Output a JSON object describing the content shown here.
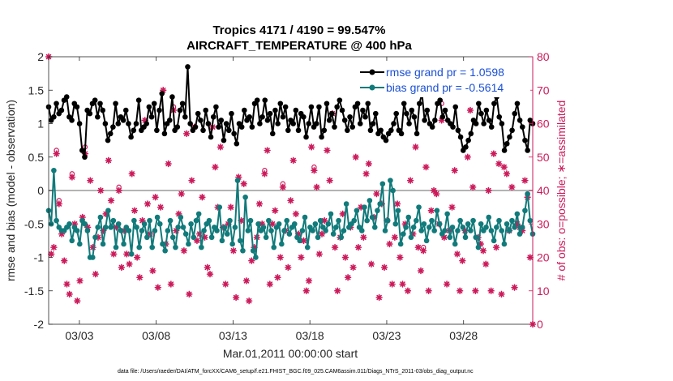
{
  "chart_data": {
    "type": "line",
    "title": "Tropics 4171 / 4190 = 99.547%",
    "subtitle": "AIRCRAFT_TEMPERATURE @ 400 hPa",
    "xlabel": "Mar.01,2011 00:00:00 start",
    "ylabel_left": "rmse and bias (model - observation)",
    "ylabel_right": "# of obs: o=possible; ∗=assimilated",
    "xlim": [
      1,
      32.5
    ],
    "ylim_left": [
      -2,
      2
    ],
    "ylim_right": [
      0,
      80
    ],
    "x_ticks": [
      3,
      8,
      13,
      18,
      23,
      28
    ],
    "x_tick_labels": [
      "03/03",
      "03/08",
      "03/13",
      "03/18",
      "03/23",
      "03/28"
    ],
    "y_left_ticks": [
      -2,
      -1.5,
      -1,
      -0.5,
      0,
      0.5,
      1,
      1.5,
      2
    ],
    "y_left_tick_labels": [
      "-2",
      "-1.5",
      "-1",
      "-0.5",
      "0",
      "0.5",
      "1",
      "1.5",
      "2"
    ],
    "y_right_ticks": [
      0,
      10,
      20,
      30,
      40,
      50,
      60,
      70,
      80
    ],
    "y_right_tick_labels": [
      "0",
      "10",
      "20",
      "30",
      "40",
      "50",
      "60",
      "70",
      "80"
    ],
    "zero_line": 0,
    "legend": {
      "position": "top-right"
    },
    "series": [
      {
        "name": "rmse grand pr = 1.0598",
        "color": "#000000",
        "axis": "left",
        "values": [
          1.25,
          1.05,
          1.1,
          1.3,
          1.15,
          1.2,
          1.35,
          1.4,
          1.1,
          1.05,
          1.3,
          1.25,
          1.0,
          0.6,
          0.5,
          1.2,
          1.15,
          1.3,
          1.35,
          1.1,
          1.3,
          1.2,
          1.0,
          0.75,
          0.85,
          0.95,
          1.3,
          1.0,
          1.1,
          1.05,
          1.2,
          1.0,
          0.8,
          0.9,
          1.0,
          1.35,
          0.9,
          0.95,
          1.0,
          1.25,
          1.1,
          1.3,
          0.9,
          1.2,
          1.45,
          0.85,
          1.0,
          1.05,
          1.4,
          0.9,
          0.95,
          1.2,
          1.3,
          1.1,
          1.85,
          1.0,
          0.9,
          0.95,
          1.15,
          1.05,
          0.9,
          1.2,
          1.0,
          0.8,
          1.1,
          1.25,
          0.95,
          1.05,
          0.75,
          1.0,
          0.9,
          1.15,
          0.85,
          0.7,
          1.0,
          0.95,
          1.2,
          1.05,
          1.1,
          0.95,
          1.3,
          1.35,
          1.0,
          1.1,
          1.35,
          1.05,
          1.15,
          0.85,
          1.2,
          1.0,
          1.3,
          1.1,
          1.25,
          0.9,
          1.05,
          1.0,
          1.2,
          0.9,
          1.15,
          1.1,
          0.8,
          1.0,
          1.25,
          0.95,
          1.0,
          1.25,
          0.8,
          0.9,
          1.3,
          1.05,
          1.15,
          0.95,
          1.25,
          1.35,
          1.2,
          1.05,
          0.9,
          1.1,
          0.95,
          1.25,
          1.3,
          1.0,
          1.2,
          1.1,
          1.3,
          0.9,
          1.0,
          1.15,
          0.85,
          0.9,
          0.8,
          0.75,
          0.85,
          0.9,
          1.0,
          1.15,
          0.9,
          0.85,
          1.3,
          1.15,
          1.0,
          1.2,
          1.1,
          0.85,
          1.3,
          1.45,
          1.05,
          1.2,
          1.0,
          0.95,
          1.05,
          1.3,
          1.35,
          1.1,
          1.2,
          1.05,
          1.0,
          0.95,
          1.25,
          0.9,
          0.8,
          0.6,
          0.65,
          0.75,
          0.85,
          1.05,
          1.0,
          1.3,
          1.15,
          1.0,
          1.2,
          1.05,
          0.95,
          1.3,
          1.4,
          1.1,
          1.0,
          0.6,
          0.7,
          0.8,
          0.9,
          1.15,
          1.3,
          1.05,
          0.95,
          0.75,
          0.6,
          1.05,
          1.0
        ]
      },
      {
        "name": "bias grand pr = -0.5614",
        "color": "#117a7a",
        "axis": "left",
        "values": [
          -0.3,
          -0.5,
          0.3,
          -0.45,
          -0.55,
          -0.6,
          -0.6,
          -0.55,
          -0.5,
          -0.75,
          -0.55,
          -0.6,
          -0.8,
          -0.45,
          -0.5,
          -0.6,
          -1.0,
          -1.0,
          -0.7,
          -0.55,
          -0.4,
          -0.8,
          -0.55,
          -0.3,
          -0.55,
          -0.45,
          -0.85,
          -0.5,
          -0.6,
          -0.8,
          -0.55,
          -0.6,
          -0.95,
          -0.45,
          -0.55,
          -0.85,
          -0.6,
          -0.5,
          -0.7,
          -0.45,
          -0.85,
          -0.6,
          -0.4,
          -0.5,
          -0.8,
          -0.9,
          -0.6,
          -0.45,
          -0.7,
          -0.85,
          -0.55,
          -0.4,
          -0.55,
          -0.65,
          -0.8,
          -0.5,
          -0.7,
          -0.45,
          -0.35,
          -0.85,
          -0.6,
          -0.5,
          -0.45,
          -0.7,
          -0.55,
          -0.6,
          -0.25,
          -0.75,
          -0.55,
          -0.65,
          -0.45,
          -0.8,
          -0.55,
          0.15,
          -0.75,
          -0.9,
          -0.1,
          -0.6,
          -0.45,
          -0.9,
          -1.0,
          -0.5,
          -0.6,
          -0.55,
          -0.7,
          -0.45,
          -0.6,
          -0.85,
          -0.55,
          -0.5,
          -0.8,
          -0.6,
          -0.45,
          -0.65,
          -0.55,
          -0.5,
          -0.7,
          -0.75,
          -0.6,
          -0.4,
          -0.85,
          -0.55,
          -0.6,
          -0.5,
          -0.7,
          -0.45,
          -0.55,
          -0.6,
          -0.5,
          -0.35,
          -0.65,
          -0.55,
          -0.45,
          -0.7,
          -0.6,
          -0.2,
          -0.55,
          -0.5,
          -0.45,
          -0.3,
          -0.55,
          -0.6,
          -0.25,
          -0.45,
          -0.15,
          -0.4,
          -0.55,
          -0.3,
          -0.2,
          0.1,
          -0.6,
          -0.45,
          0.15,
          0.0,
          -0.5,
          -0.3,
          -0.8,
          -0.65,
          -0.55,
          -0.4,
          -0.7,
          -0.55,
          -0.45,
          -0.25,
          -0.6,
          -0.5,
          -0.75,
          -0.55,
          -0.45,
          -0.6,
          -0.3,
          -0.5,
          -0.65,
          -0.6,
          -0.35,
          -0.7,
          -0.55,
          -0.8,
          -0.6,
          -0.45,
          -0.55,
          -0.7,
          -0.5,
          -0.6,
          -0.45,
          -0.7,
          -0.85,
          -0.5,
          -0.6,
          -0.55,
          -0.4,
          -0.6,
          -0.75,
          -0.55,
          -0.45,
          -0.6,
          -0.8,
          -0.5,
          -0.6,
          -0.45,
          -0.55,
          -0.35,
          -0.65,
          -0.55,
          -0.3,
          -0.05,
          -0.45,
          -0.65
        ]
      }
    ],
    "obs_assimilated": [
      80,
      21,
      23,
      51,
      36,
      27,
      19,
      12,
      9,
      44,
      30,
      7,
      13,
      32,
      51,
      29,
      43,
      23,
      15,
      26,
      40,
      28,
      33,
      49,
      37,
      21,
      29,
      40,
      17,
      28,
      21,
      18,
      45,
      34,
      20,
      14,
      31,
      61,
      36,
      27,
      16,
      38,
      11,
      35,
      70,
      24,
      48,
      12,
      64,
      28,
      33,
      39,
      22,
      57,
      9,
      43,
      59,
      25,
      27,
      38,
      26,
      17,
      15,
      59,
      47,
      35,
      53,
      29,
      12,
      30,
      35,
      22,
      8,
      44,
      31,
      42,
      13,
      7,
      19,
      23,
      26,
      36,
      30,
      45,
      52,
      12,
      30,
      34,
      14,
      20,
      41,
      28,
      17,
      37,
      49,
      33,
      27,
      20,
      25,
      10,
      13,
      53,
      46,
      41,
      21,
      27,
      31,
      52,
      43,
      63,
      23,
      10,
      26,
      33,
      20,
      14,
      29,
      17,
      50,
      23,
      35,
      26,
      45,
      48,
      18,
      32,
      39,
      8,
      36,
      17,
      31,
      24,
      12,
      26,
      36,
      20,
      12,
      30,
      10,
      43,
      27,
      53,
      23,
      16,
      22,
      47,
      10,
      34,
      40,
      39,
      30,
      61,
      26,
      12,
      28,
      35,
      46,
      21,
      10,
      19,
      28,
      50,
      64,
      41,
      10,
      26,
      24,
      22,
      18,
      40,
      10,
      51,
      23,
      48,
      9,
      47,
      45,
      28,
      41,
      11,
      30,
      29,
      28,
      43,
      38,
      20,
      0
    ],
    "obs_possible": [
      80,
      21,
      23,
      52,
      37,
      27,
      19,
      12,
      9,
      45,
      30,
      7,
      13,
      32,
      53,
      29,
      43,
      23,
      15,
      26,
      40,
      28,
      33,
      49,
      37,
      21,
      29,
      41,
      17,
      28,
      21,
      18,
      45,
      34,
      20,
      14,
      31,
      61,
      36,
      27,
      16,
      38,
      11,
      35,
      70,
      24,
      48,
      12,
      65,
      28,
      33,
      39,
      22,
      57,
      9,
      43,
      59,
      25,
      27,
      38,
      26,
      17,
      15,
      59,
      47,
      35,
      53,
      29,
      12,
      30,
      35,
      22,
      8,
      44,
      31,
      42,
      13,
      7,
      19,
      23,
      26,
      36,
      30,
      46,
      52,
      12,
      30,
      34,
      14,
      20,
      42,
      28,
      17,
      37,
      49,
      33,
      27,
      20,
      25,
      10,
      13,
      53,
      47,
      41,
      21,
      27,
      31,
      52,
      43,
      63,
      23,
      10,
      26,
      33,
      20,
      14,
      29,
      17,
      50,
      23,
      35,
      26,
      45,
      48,
      18,
      32,
      39,
      8,
      36,
      17,
      31,
      24,
      12,
      26,
      36,
      20,
      12,
      30,
      10,
      43,
      27,
      53,
      23,
      16,
      23,
      47,
      10,
      34,
      40,
      39,
      30,
      66,
      26,
      12,
      28,
      35,
      46,
      21,
      10,
      19,
      28,
      50,
      64,
      41,
      10,
      26,
      24,
      22,
      18,
      40,
      10,
      51,
      23,
      48,
      9,
      47,
      45,
      28,
      41,
      11,
      30,
      29,
      28,
      43,
      38,
      20,
      0
    ]
  },
  "footnote": "data file: /Users/raeder/DAI/ATM_forcXX/CAM6_setup/f.e21.FHIST_BGC.f09_025.CAM6assim.011/Diags_NTrS_2011-03/obs_diag_output.nc"
}
